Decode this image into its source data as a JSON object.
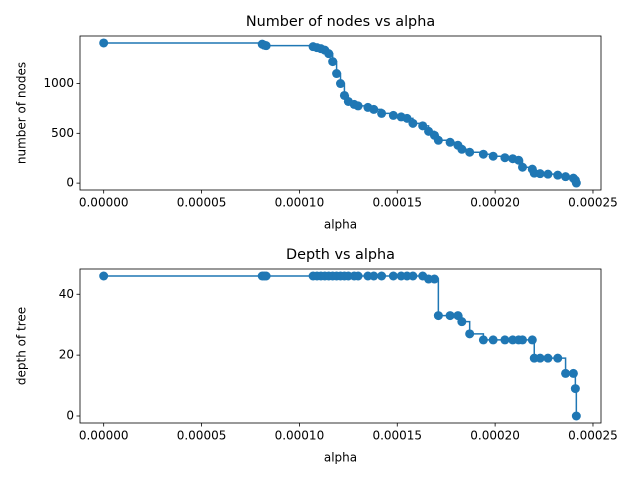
{
  "chart_data": [
    {
      "type": "line",
      "drawstyle": "steps-post",
      "title": "Number of nodes vs alpha",
      "x_label": "alpha",
      "y_label": "number of nodes",
      "x": [
        0,
        8.1e-05,
        8.2e-05,
        8.3e-05,
        0.000107,
        0.000109,
        0.000111,
        0.000113,
        0.000115,
        0.000117,
        0.000119,
        0.000121,
        0.000123,
        0.000125,
        0.000128,
        0.00013,
        0.000135,
        0.000138,
        0.000142,
        0.000148,
        0.000152,
        0.000155,
        0.000158,
        0.000163,
        0.000166,
        0.000169,
        0.000171,
        0.000177,
        0.000181,
        0.000183,
        0.000187,
        0.000194,
        0.000199,
        0.000205,
        0.000209,
        0.000212,
        0.000214,
        0.000219,
        0.00022,
        0.000223,
        0.000227,
        0.000232,
        0.000236,
        0.00024,
        0.000241,
        0.0002415
      ],
      "series": [
        {
          "color": "#1f77b4",
          "values": [
            1407,
            1395,
            1385,
            1380,
            1370,
            1360,
            1350,
            1335,
            1300,
            1220,
            1100,
            1000,
            880,
            820,
            790,
            775,
            760,
            740,
            700,
            680,
            665,
            650,
            600,
            575,
            520,
            480,
            430,
            410,
            380,
            340,
            310,
            290,
            270,
            255,
            245,
            230,
            160,
            140,
            100,
            95,
            90,
            80,
            65,
            50,
            30,
            1
          ]
        }
      ],
      "xlim": [
        -1.21e-05,
        0.0002541
      ],
      "ylim": [
        -69,
        1477
      ],
      "xticks": [
        {
          "value": 0,
          "label": "0.00000"
        },
        {
          "value": 5e-05,
          "label": "0.00005"
        },
        {
          "value": 0.0001,
          "label": "0.00010"
        },
        {
          "value": 0.00015,
          "label": "0.00015"
        },
        {
          "value": 0.0002,
          "label": "0.00020"
        },
        {
          "value": 0.00025,
          "label": "0.00025"
        }
      ],
      "yticks": [
        0,
        500,
        1000
      ]
    },
    {
      "type": "line",
      "drawstyle": "steps-post",
      "title": "Depth vs alpha",
      "x_label": "alpha",
      "y_label": "depth of tree",
      "x": [
        0,
        8.1e-05,
        8.2e-05,
        8.3e-05,
        0.000107,
        0.000109,
        0.000111,
        0.000113,
        0.000115,
        0.000117,
        0.000119,
        0.000121,
        0.000123,
        0.000125,
        0.000128,
        0.00013,
        0.000135,
        0.000138,
        0.000142,
        0.000148,
        0.000152,
        0.000155,
        0.000158,
        0.000163,
        0.000166,
        0.000169,
        0.000171,
        0.000177,
        0.000181,
        0.000183,
        0.000187,
        0.000194,
        0.000199,
        0.000205,
        0.000209,
        0.000212,
        0.000214,
        0.000219,
        0.00022,
        0.000223,
        0.000227,
        0.000232,
        0.000236,
        0.00024,
        0.000241,
        0.0002415
      ],
      "series": [
        {
          "color": "#1f77b4",
          "values": [
            46,
            46,
            46,
            46,
            46,
            46,
            46,
            46,
            46,
            46,
            46,
            46,
            46,
            46,
            46,
            46,
            46,
            46,
            46,
            46,
            46,
            46,
            46,
            46,
            45,
            45,
            33,
            33,
            33,
            31,
            27,
            25,
            25,
            25,
            25,
            25,
            25,
            25,
            19,
            19,
            19,
            19,
            14,
            14,
            9,
            0
          ]
        }
      ],
      "xlim": [
        -1.21e-05,
        0.0002541
      ],
      "ylim": [
        -2.3,
        48.3
      ],
      "xticks": [
        {
          "value": 0,
          "label": "0.00000"
        },
        {
          "value": 5e-05,
          "label": "0.00005"
        },
        {
          "value": 0.0001,
          "label": "0.00010"
        },
        {
          "value": 0.00015,
          "label": "0.00015"
        },
        {
          "value": 0.0002,
          "label": "0.00020"
        },
        {
          "value": 0.00025,
          "label": "0.00025"
        }
      ],
      "yticks": [
        0,
        20,
        40
      ]
    }
  ]
}
